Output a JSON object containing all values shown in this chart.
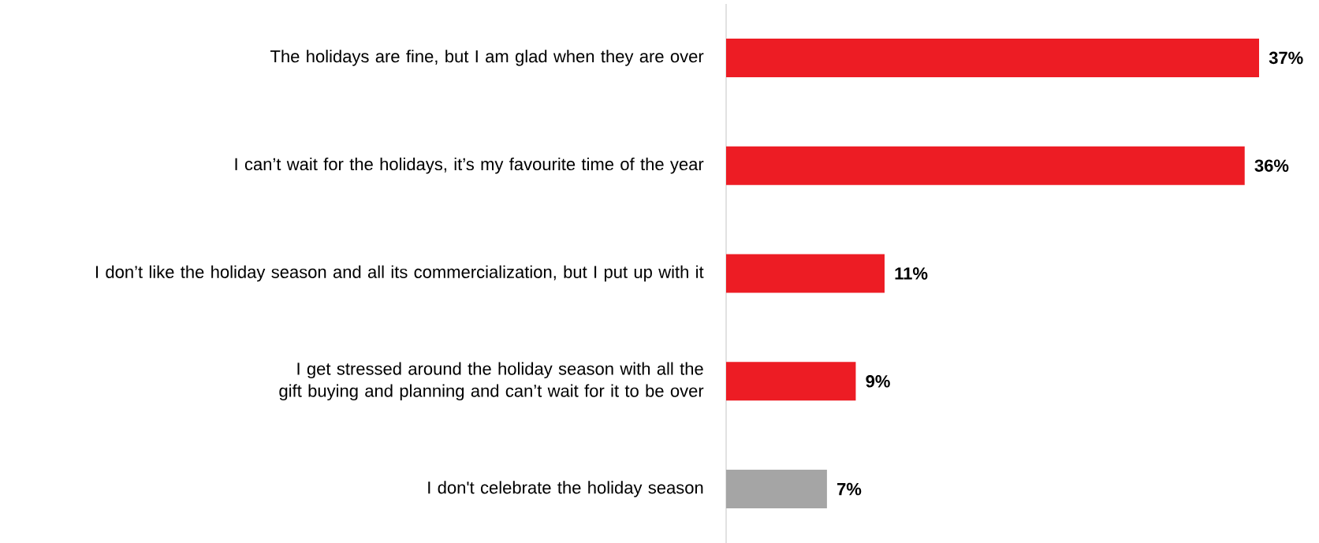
{
  "chart_data": {
    "type": "bar",
    "orientation": "horizontal",
    "categories": [
      "The holidays are fine, but I am glad when they are over",
      "I can’t wait for the holidays, it’s my favourite time of the year",
      "I don’t like the holiday season and all its commercialization, but I put up with it",
      "I get stressed around the holiday season with all the gift buying and planning and can’t wait for it to be over",
      "I don't celebrate the holiday season"
    ],
    "values": [
      37,
      36,
      11,
      9,
      7
    ],
    "colors": [
      "#ed1c24",
      "#ed1c24",
      "#ed1c24",
      "#ed1c24",
      "#a5a5a5"
    ],
    "value_labels": [
      "37%",
      "36%",
      "11%",
      "9%",
      "7%"
    ],
    "tick_labels": "y"
  }
}
